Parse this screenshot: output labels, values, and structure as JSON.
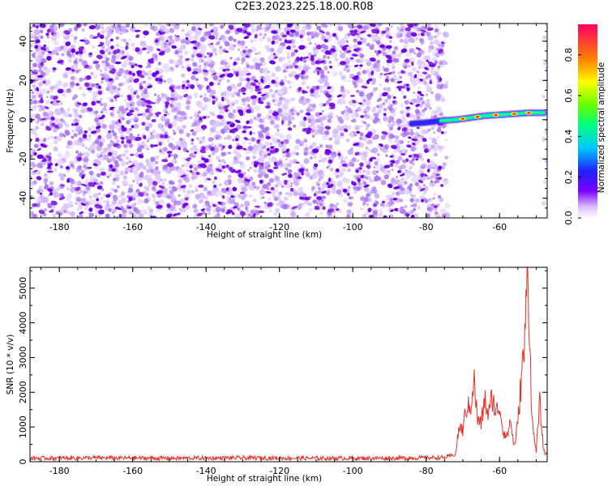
{
  "title": "C2E3.2023.225.18.00.R08",
  "colors": {
    "noise_purple": "#8a2be2",
    "line_red": "#e8302a",
    "axis": "#000000"
  },
  "chart_data": [
    {
      "type": "heatmap",
      "xlabel": "Height of straight line (km)",
      "ylabel": "Frequency (Hz)",
      "xlim": [
        -188,
        -47
      ],
      "ylim": [
        -50,
        49
      ],
      "xticks": [
        -180,
        -160,
        -140,
        -120,
        -100,
        -80,
        -60
      ],
      "yticks": [
        -40,
        -20,
        0,
        20,
        40
      ],
      "noise_region": {
        "x_range": [
          -188,
          -75
        ],
        "y_range": [
          -50,
          49
        ],
        "color": "#8a2be2"
      },
      "signal_trace": {
        "x": [
          -84,
          -80,
          -76,
          -72,
          -68,
          -64,
          -60,
          -56,
          -52,
          -48
        ],
        "y": [
          -2,
          -1.5,
          -0.5,
          0,
          1,
          2,
          2.5,
          3,
          3.5,
          3.5
        ],
        "peak_x": [
          -70,
          -66,
          -61,
          -56,
          -52
        ]
      },
      "colorbar": {
        "label": "Normalized spectral amplitude",
        "ticks": [
          0.0,
          0.2,
          0.4,
          0.6,
          0.8
        ],
        "range": [
          0,
          0.95
        ],
        "colormap": "rainbow"
      }
    },
    {
      "type": "line",
      "xlabel": "Height of straight line (km)",
      "ylabel": "SNR (10 * v/v)",
      "xlim": [
        -188,
        -47
      ],
      "ylim": [
        0,
        5600
      ],
      "xticks": [
        -180,
        -160,
        -140,
        -120,
        -100,
        -80,
        -60
      ],
      "yticks": [
        0,
        1000,
        2000,
        3000,
        4000,
        5000
      ],
      "series": [
        {
          "color": "#e8302a",
          "x": [
            -188,
            -170,
            -150,
            -130,
            -110,
            -90,
            -75,
            -72,
            -71,
            -70,
            -69,
            -68,
            -67,
            -66,
            -65,
            -64,
            -63,
            -62,
            -61,
            -60,
            -59,
            -58,
            -57,
            -56,
            -55,
            -54,
            -53,
            -52.5,
            -52,
            -51.5,
            -51,
            -50,
            -49,
            -48,
            -47
          ],
          "y": [
            100,
            110,
            100,
            110,
            100,
            100,
            120,
            200,
            1000,
            900,
            1600,
            1500,
            2400,
            1200,
            1100,
            1800,
            1300,
            1900,
            1400,
            1600,
            900,
            700,
            1200,
            400,
            1100,
            2500,
            3500,
            5600,
            4500,
            2500,
            1000,
            300,
            1700,
            300,
            200
          ]
        }
      ]
    }
  ]
}
